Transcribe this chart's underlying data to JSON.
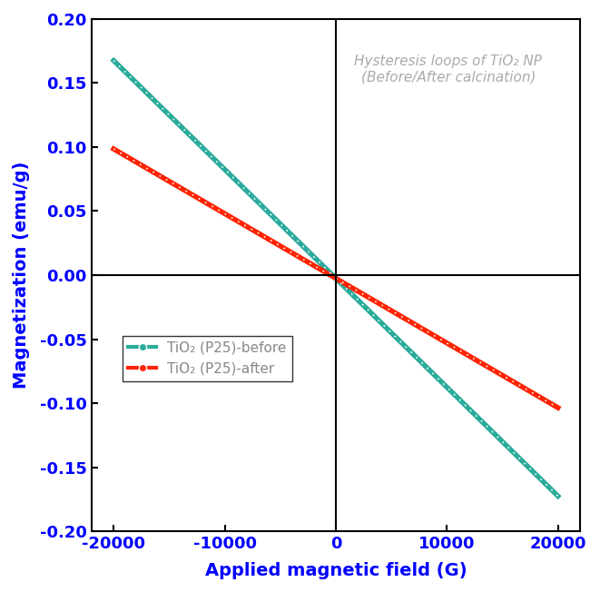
{
  "title_annotation": "Hysteresis loops of TiO₂ NP\n(Before/After calcination)",
  "xlabel": "Applied magnetic field (G)",
  "ylabel": "Magnetization (emu/g)",
  "xlim": [
    -22000,
    22000
  ],
  "ylim": [
    -0.2,
    0.2
  ],
  "xticks": [
    -20000,
    -10000,
    0,
    10000,
    20000
  ],
  "yticks": [
    -0.2,
    -0.15,
    -0.1,
    -0.05,
    0.0,
    0.05,
    0.1,
    0.15,
    0.2
  ],
  "before_color": "#2aab9b",
  "after_color": "#ff2200",
  "before_label": "TiO₂ (P25)-before",
  "after_label": "TiO₂ (P25)-after",
  "before_slope": -8.5e-06,
  "after_slope": -5.05e-06,
  "before_intercept": -0.0025,
  "after_intercept": -0.0025,
  "axis_label_color": "#0000ff",
  "annotation_color": "#aaaaaa",
  "annotation_fontsize": 11,
  "axis_label_fontsize": 14,
  "tick_fontsize": 13
}
